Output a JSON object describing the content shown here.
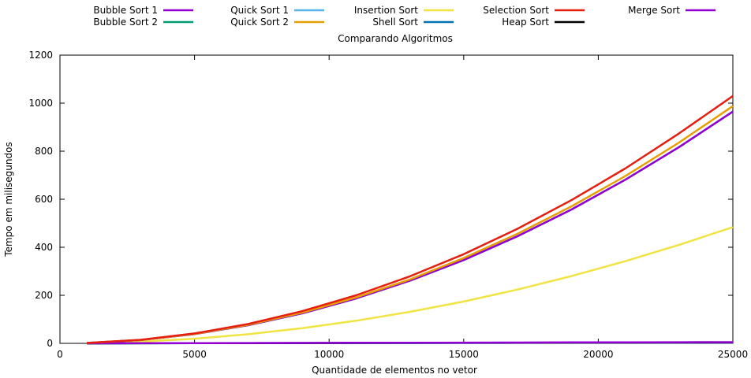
{
  "chart_data": {
    "type": "line",
    "title": "Comparando Algoritmos",
    "xlabel": "Quantidade de elementos no vetor",
    "ylabel": "Tempo em milisegundos",
    "xlim": [
      0,
      25000
    ],
    "ylim": [
      0,
      1200
    ],
    "xticks": [
      0,
      5000,
      10000,
      15000,
      20000,
      25000
    ],
    "yticks": [
      0,
      200,
      400,
      600,
      800,
      1000,
      1200
    ],
    "grid": false,
    "legend_position": "top",
    "x": [
      1000,
      3000,
      5000,
      7000,
      9000,
      11000,
      13000,
      15000,
      17000,
      19000,
      21000,
      23000,
      25000
    ],
    "series": [
      {
        "name": "Bubble Sort 1",
        "color": "#9400d3",
        "values": [
          1.5,
          13.9,
          38.6,
          75.6,
          125,
          187,
          261,
          347,
          446,
          557,
          681,
          817,
          965
        ]
      },
      {
        "name": "Bubble Sort 2",
        "color": "#009e73",
        "values": [
          1.5,
          13.9,
          38.6,
          75.6,
          125,
          187,
          261,
          347,
          446,
          557,
          681,
          817,
          965
        ]
      },
      {
        "name": "Quick Sort 1",
        "color": "#56b4e9",
        "values": [
          0.1,
          0.3,
          0.5,
          0.7,
          1.0,
          1.2,
          1.4,
          1.7,
          1.9,
          2.2,
          2.4,
          2.7,
          2.9
        ]
      },
      {
        "name": "Quick Sort 2",
        "color": "#e69f00",
        "values": [
          1.6,
          14.2,
          39.5,
          77.4,
          128,
          191,
          266,
          355,
          456,
          570,
          696,
          836,
          988
        ]
      },
      {
        "name": "Insertion Sort",
        "color": "#f0e442",
        "values": [
          0.8,
          7.0,
          19.4,
          38.0,
          63,
          94,
          131,
          174,
          224,
          280,
          342,
          410,
          484
        ]
      },
      {
        "name": "Shell Sort",
        "color": "#0072b2",
        "values": [
          0.1,
          0.3,
          0.6,
          0.9,
          1.2,
          1.5,
          1.8,
          2.1,
          2.4,
          2.7,
          3.0,
          3.3,
          3.6
        ]
      },
      {
        "name": "Selection Sort",
        "color": "#e51e10",
        "values": [
          1.6,
          14.8,
          41.2,
          80.8,
          134,
          200,
          279,
          371,
          477,
          596,
          728,
          874,
          1030
        ]
      },
      {
        "name": "Heap Sort",
        "color": "#000000",
        "values": [
          0.1,
          0.4,
          0.7,
          1.0,
          1.3,
          1.6,
          1.9,
          2.2,
          2.5,
          2.8,
          3.1,
          3.4,
          3.7
        ]
      },
      {
        "name": "Merge Sort",
        "color": "#9400d3",
        "values": [
          0.2,
          0.6,
          1.0,
          1.4,
          1.8,
          2.2,
          2.6,
          3.0,
          3.4,
          3.8,
          4.2,
          4.6,
          5.0
        ]
      }
    ]
  }
}
